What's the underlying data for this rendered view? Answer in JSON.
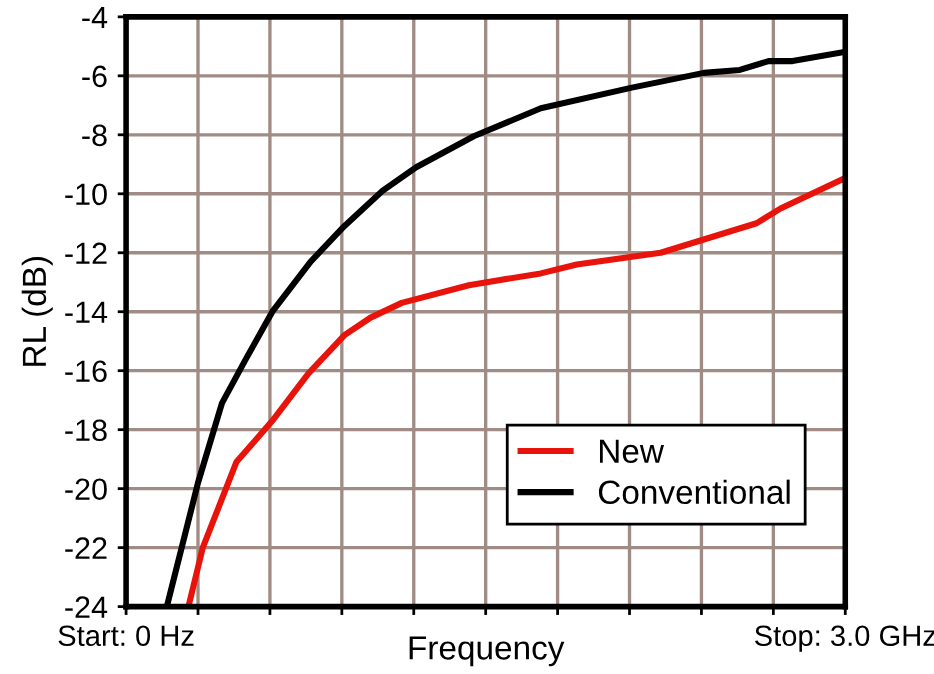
{
  "chart_data": {
    "type": "line",
    "xlabel": "Frequency",
    "ylabel": "RL (dB)",
    "xlim": [
      0,
      3
    ],
    "ylim": [
      -24,
      -4
    ],
    "xticks": [
      {
        "value": 0,
        "label": "Start: 0 Hz"
      },
      {
        "value": 0.3,
        "label": null
      },
      {
        "value": 0.6,
        "label": null
      },
      {
        "value": 0.9,
        "label": null
      },
      {
        "value": 1.2,
        "label": null
      },
      {
        "value": 1.5,
        "label": null
      },
      {
        "value": 1.8,
        "label": null
      },
      {
        "value": 2.1,
        "label": null
      },
      {
        "value": 2.4,
        "label": null
      },
      {
        "value": 2.7,
        "label": null
      },
      {
        "value": 3,
        "label": "Stop: 3.0 GHz"
      }
    ],
    "yticks": [
      -24,
      -22,
      -20,
      -18,
      -16,
      -14,
      -12,
      -10,
      -8,
      -6,
      -4
    ],
    "grid": true,
    "legend": "bottom right",
    "line_style": "solid",
    "marker": "none",
    "series": [
      {
        "name": "New",
        "color": "#e8140c",
        "x": [
          0.26,
          0.32,
          0.46,
          0.61,
          0.76,
          0.91,
          1.02,
          1.15,
          1.43,
          1.73,
          1.88,
          2.23,
          2.43,
          2.63,
          2.73,
          2.99
        ],
        "values": [
          -24,
          -22.0,
          -19.1,
          -17.7,
          -16.1,
          -14.8,
          -14.2,
          -13.7,
          -13.1,
          -12.7,
          -12.4,
          -12.0,
          -11.5,
          -11.0,
          -10.5,
          -9.5
        ]
      },
      {
        "name": "Conventional",
        "color": "#000000",
        "x": [
          0.17,
          0.3,
          0.4,
          0.5,
          0.61,
          0.77,
          0.91,
          1.07,
          1.21,
          1.45,
          1.73,
          2.11,
          2.41,
          2.56,
          2.68,
          2.78,
          2.99
        ],
        "values": [
          -24,
          -19.8,
          -17.1,
          -15.6,
          -14.0,
          -12.3,
          -11.1,
          -9.9,
          -9.1,
          -8.05,
          -7.1,
          -6.4,
          -5.9,
          -5.8,
          -5.5,
          -5.5,
          -5.2
        ]
      }
    ]
  }
}
